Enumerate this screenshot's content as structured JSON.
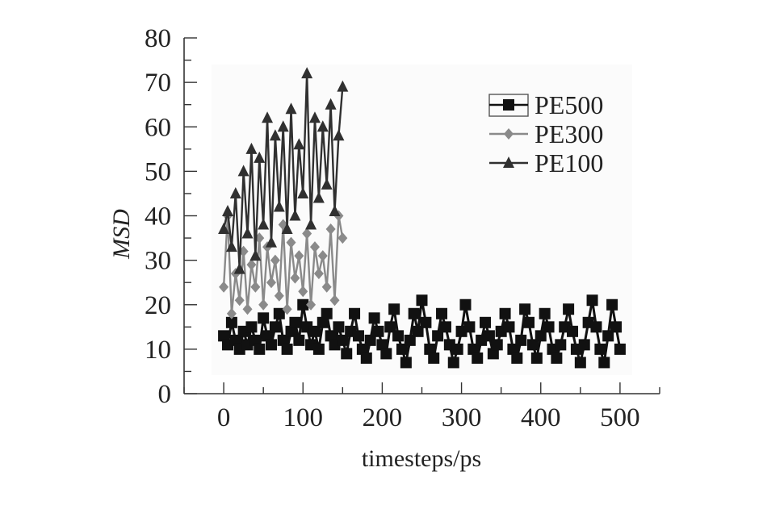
{
  "chart_data": {
    "type": "line",
    "title": "",
    "xlabel": "timesteps/ps",
    "ylabel": "MSD",
    "xlim": [
      -50,
      550
    ],
    "ylim": [
      0,
      80
    ],
    "xticks": [
      "0",
      "100",
      "200",
      "300",
      "400",
      "500"
    ],
    "yticks": [
      "0",
      "10",
      "20",
      "30",
      "40",
      "50",
      "60",
      "70",
      "80"
    ],
    "legend_position": "top-right",
    "grid": false,
    "series": [
      {
        "name": "PE500",
        "color": "#111111",
        "marker": "square",
        "x": [
          0,
          5,
          10,
          15,
          20,
          25,
          30,
          35,
          40,
          45,
          50,
          55,
          60,
          65,
          70,
          75,
          80,
          85,
          90,
          95,
          100,
          105,
          110,
          115,
          120,
          125,
          130,
          135,
          140,
          145,
          150,
          155,
          160,
          165,
          170,
          175,
          180,
          185,
          190,
          195,
          200,
          205,
          210,
          215,
          220,
          225,
          230,
          235,
          240,
          245,
          250,
          255,
          260,
          265,
          270,
          275,
          280,
          285,
          290,
          295,
          300,
          305,
          310,
          315,
          320,
          325,
          330,
          335,
          340,
          345,
          350,
          355,
          360,
          365,
          370,
          375,
          380,
          385,
          390,
          395,
          400,
          405,
          410,
          415,
          420,
          425,
          430,
          435,
          440,
          445,
          450,
          455,
          460,
          465,
          470,
          475,
          480,
          485,
          490,
          495,
          500
        ],
        "y": [
          13,
          11,
          16,
          12,
          10,
          14,
          11,
          15,
          12,
          10,
          17,
          13,
          11,
          15,
          18,
          12,
          10,
          14,
          16,
          12,
          20,
          15,
          11,
          14,
          10,
          16,
          18,
          13,
          11,
          15,
          12,
          9,
          14,
          18,
          13,
          10,
          8,
          12,
          17,
          14,
          11,
          9,
          15,
          19,
          13,
          10,
          7,
          12,
          18,
          14,
          21,
          16,
          10,
          8,
          13,
          18,
          15,
          11,
          7,
          10,
          14,
          20,
          15,
          10,
          8,
          12,
          16,
          13,
          9,
          11,
          14,
          18,
          15,
          10,
          8,
          12,
          19,
          16,
          11,
          8,
          13,
          18,
          15,
          10,
          8,
          11,
          15,
          19,
          14,
          10,
          7,
          11,
          16,
          21,
          15,
          10,
          7,
          13,
          20,
          15,
          10
        ]
      },
      {
        "name": "PE300",
        "color": "#8a8a8a",
        "marker": "diamond",
        "x": [
          0,
          5,
          10,
          15,
          20,
          25,
          30,
          35,
          40,
          45,
          50,
          55,
          60,
          65,
          70,
          75,
          80,
          85,
          90,
          95,
          100,
          105,
          110,
          115,
          120,
          125,
          130,
          135,
          140,
          145,
          150
        ],
        "y": [
          24,
          40,
          18,
          27,
          21,
          32,
          19,
          29,
          24,
          35,
          20,
          33,
          25,
          30,
          22,
          38,
          19,
          34,
          26,
          31,
          23,
          36,
          20,
          33,
          27,
          31,
          24,
          37,
          21,
          40,
          35
        ]
      },
      {
        "name": "PE100",
        "color": "#303030",
        "marker": "triangle",
        "x": [
          0,
          5,
          10,
          15,
          20,
          25,
          30,
          35,
          40,
          45,
          50,
          55,
          60,
          65,
          70,
          75,
          80,
          85,
          90,
          95,
          100,
          105,
          110,
          115,
          120,
          125,
          130,
          135,
          140,
          145,
          150
        ],
        "y": [
          37,
          41,
          33,
          45,
          28,
          50,
          36,
          55,
          31,
          53,
          38,
          62,
          34,
          58,
          42,
          60,
          37,
          64,
          40,
          56,
          45,
          72,
          38,
          62,
          44,
          60,
          47,
          65,
          41,
          58,
          69
        ]
      }
    ]
  }
}
